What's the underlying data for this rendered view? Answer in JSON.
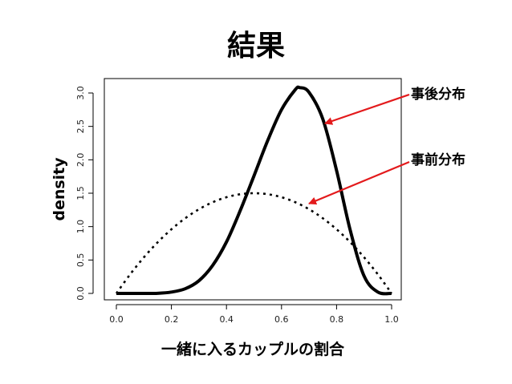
{
  "page": {
    "title": "結果"
  },
  "chart_data": {
    "type": "line",
    "title": "",
    "xlabel": "一緒に入るカップルの割合",
    "ylabel": "density",
    "xlim": [
      0.0,
      1.0
    ],
    "ylim": [
      0.0,
      3.15
    ],
    "x_ticks": [
      "0.0",
      "0.2",
      "0.4",
      "0.6",
      "0.8",
      "1.0"
    ],
    "y_ticks": [
      "0.0",
      "0.5",
      "1.0",
      "1.5",
      "2.0",
      "2.5",
      "3.0"
    ],
    "series": [
      {
        "name": "事後分布",
        "style": "solid",
        "x": [
          0.0,
          0.05,
          0.1,
          0.15,
          0.2,
          0.25,
          0.3,
          0.35,
          0.4,
          0.45,
          0.5,
          0.55,
          0.6,
          0.65,
          0.6667,
          0.7,
          0.75,
          0.8,
          0.85,
          0.9,
          0.95,
          1.0
        ],
        "y": [
          0.0,
          0.0,
          0.0,
          0.002,
          0.02,
          0.07,
          0.19,
          0.42,
          0.77,
          1.24,
          1.76,
          2.29,
          2.75,
          3.05,
          3.08,
          3.01,
          2.61,
          1.84,
          0.94,
          0.26,
          0.02,
          0.0
        ]
      },
      {
        "name": "事前分布",
        "style": "dotted",
        "x": [
          0.0,
          0.05,
          0.1,
          0.15,
          0.2,
          0.25,
          0.3,
          0.35,
          0.4,
          0.45,
          0.5,
          0.55,
          0.6,
          0.65,
          0.7,
          0.75,
          0.8,
          0.85,
          0.9,
          0.95,
          1.0
        ],
        "y": [
          0.0,
          0.285,
          0.54,
          0.765,
          0.96,
          1.125,
          1.26,
          1.365,
          1.44,
          1.485,
          1.5,
          1.485,
          1.44,
          1.365,
          1.26,
          1.125,
          0.96,
          0.765,
          0.54,
          0.285,
          0.0
        ]
      }
    ],
    "annotations": [
      {
        "label": "事後分布",
        "target_series": "事後分布",
        "arrow_color": "#e31a1c"
      },
      {
        "label": "事前分布",
        "target_series": "事前分布",
        "arrow_color": "#e31a1c"
      }
    ],
    "grid": false,
    "legend": "none"
  }
}
